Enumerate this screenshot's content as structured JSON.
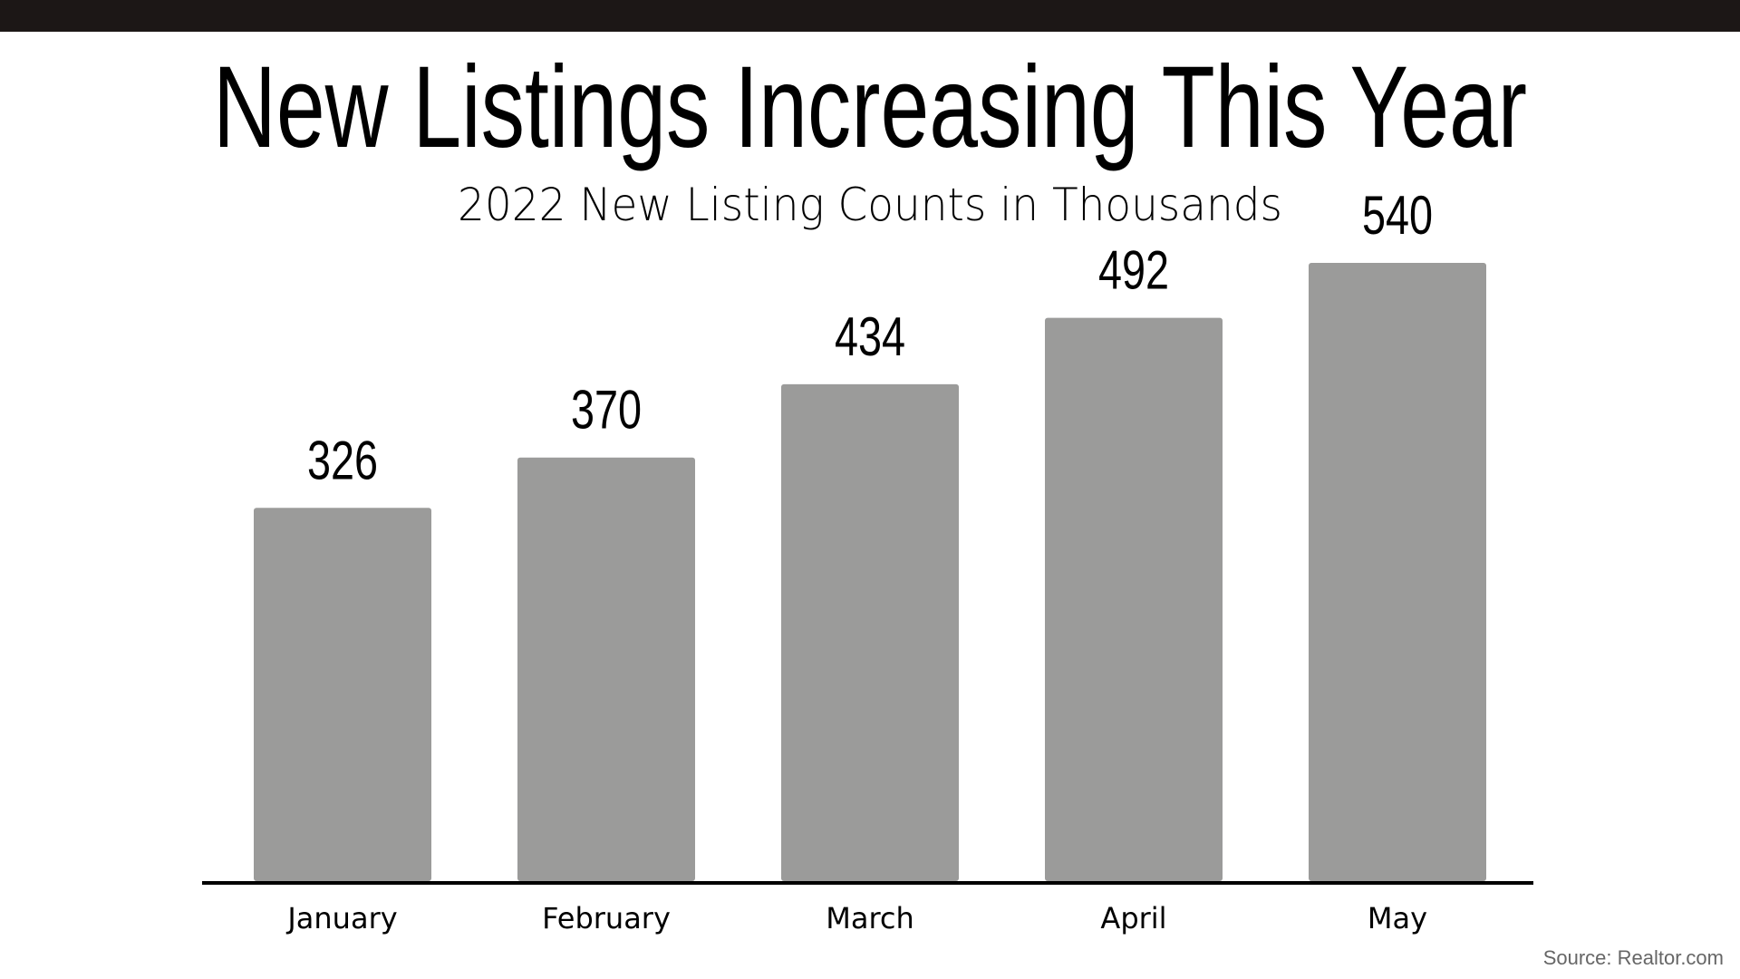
{
  "chart_data": {
    "type": "bar",
    "title": "New Listings Increasing This Year",
    "subtitle": "2022 New Listing Counts in Thousands",
    "categories": [
      "January",
      "February",
      "March",
      "April",
      "May"
    ],
    "values": [
      326,
      370,
      434,
      492,
      540
    ],
    "color": "#9b9b9a",
    "source": "Source: Realtor.com"
  }
}
